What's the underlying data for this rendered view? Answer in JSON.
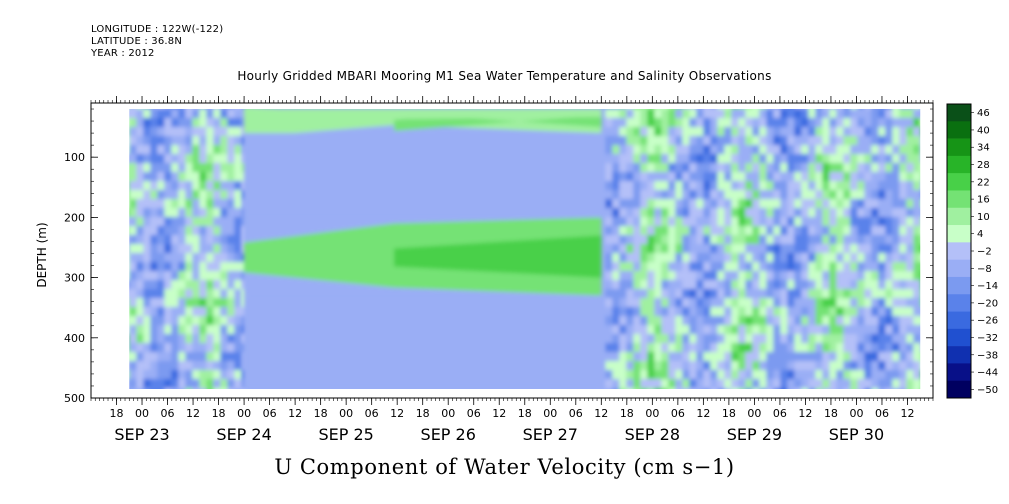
{
  "header": {
    "longitude": "LONGITUDE : 122W(-122)",
    "latitude": "LATITUDE : 36.8N",
    "year": "YEAR : 2012"
  },
  "chart_data": {
    "type": "heatmap",
    "title": "Hourly Gridded MBARI Mooring M1 Sea Water Temperature and Salinity Observations",
    "xlabel": "U Component of Water Velocity (cm s−1)",
    "ylabel": "DEPTH (m)",
    "ylim": [
      500,
      10
    ],
    "y_ticks": [
      100,
      200,
      300,
      400,
      500
    ],
    "x_unit": "hours",
    "x_range": [
      "2012-09-22 12:00",
      "2012-09-30 18:00"
    ],
    "x_hour_ticks": [
      {
        "time": "2012-09-22 18:00",
        "label": "18"
      },
      {
        "time": "2012-09-23 00:00",
        "label": "00"
      },
      {
        "time": "2012-09-23 06:00",
        "label": "06"
      },
      {
        "time": "2012-09-23 12:00",
        "label": "12"
      },
      {
        "time": "2012-09-23 18:00",
        "label": "18"
      },
      {
        "time": "2012-09-24 00:00",
        "label": "00"
      },
      {
        "time": "2012-09-24 06:00",
        "label": "06"
      },
      {
        "time": "2012-09-24 12:00",
        "label": "12"
      },
      {
        "time": "2012-09-24 18:00",
        "label": "18"
      },
      {
        "time": "2012-09-25 00:00",
        "label": "00"
      },
      {
        "time": "2012-09-25 06:00",
        "label": "06"
      },
      {
        "time": "2012-09-25 12:00",
        "label": "12"
      },
      {
        "time": "2012-09-25 18:00",
        "label": "18"
      },
      {
        "time": "2012-09-26 00:00",
        "label": "00"
      },
      {
        "time": "2012-09-26 06:00",
        "label": "06"
      },
      {
        "time": "2012-09-26 12:00",
        "label": "12"
      },
      {
        "time": "2012-09-26 18:00",
        "label": "18"
      },
      {
        "time": "2012-09-27 00:00",
        "label": "00"
      },
      {
        "time": "2012-09-27 06:00",
        "label": "06"
      },
      {
        "time": "2012-09-27 12:00",
        "label": "12"
      },
      {
        "time": "2012-09-27 18:00",
        "label": "18"
      },
      {
        "time": "2012-09-28 00:00",
        "label": "00"
      },
      {
        "time": "2012-09-28 06:00",
        "label": "06"
      },
      {
        "time": "2012-09-28 12:00",
        "label": "12"
      },
      {
        "time": "2012-09-28 18:00",
        "label": "18"
      },
      {
        "time": "2012-09-29 00:00",
        "label": "00"
      },
      {
        "time": "2012-09-29 06:00",
        "label": "06"
      },
      {
        "time": "2012-09-29 12:00",
        "label": "12"
      },
      {
        "time": "2012-09-29 18:00",
        "label": "18"
      },
      {
        "time": "2012-09-30 00:00",
        "label": "00"
      },
      {
        "time": "2012-09-30 06:00",
        "label": "06"
      },
      {
        "time": "2012-09-30 12:00",
        "label": "12"
      }
    ],
    "x_date_labels": [
      {
        "time": "2012-09-23 00:00",
        "label": "SEP 23"
      },
      {
        "time": "2012-09-24 00:00",
        "label": "SEP 24"
      },
      {
        "time": "2012-09-25 00:00",
        "label": "SEP 25"
      },
      {
        "time": "2012-09-26 00:00",
        "label": "SEP 26"
      },
      {
        "time": "2012-09-27 00:00",
        "label": "SEP 27"
      },
      {
        "time": "2012-09-28 00:00",
        "label": "SEP 28"
      },
      {
        "time": "2012-09-29 00:00",
        "label": "SEP 29"
      },
      {
        "time": "2012-09-30 00:00",
        "label": "SEP 30"
      }
    ],
    "data_time_range": [
      "2012-09-22 21:00",
      "2012-09-30 15:00"
    ],
    "data_depth_range": [
      20,
      485
    ],
    "colorbar": {
      "levels": [
        -50,
        -44,
        -38,
        -32,
        -26,
        -20,
        -14,
        -8,
        -2,
        4,
        10,
        16,
        22,
        28,
        34,
        40,
        46
      ],
      "labels": [
        "46",
        "40",
        "34",
        "28",
        "22",
        "16",
        "10",
        "4",
        "−2",
        "−8",
        "−14",
        "−20",
        "−26",
        "−32",
        "−38",
        "−44",
        "−50"
      ],
      "colors": [
        "#000060",
        "#081088",
        "#1030b0",
        "#2050d0",
        "#3a6ae0",
        "#5a82ea",
        "#7b9af0",
        "#9aaef5",
        "#b4c0f8",
        "#c8ffc8",
        "#a0f0a0",
        "#74e274",
        "#48d048",
        "#28b428",
        "#169416",
        "#0a7010",
        "#0a5018"
      ]
    },
    "features": [
      {
        "kind": "band",
        "start": "2012-09-24 00:00",
        "end": "2012-09-27 12:00",
        "depth": [
          20,
          60
        ],
        "value": 10
      },
      {
        "kind": "band",
        "start": "2012-09-24 00:00",
        "end": "2012-09-27 12:00",
        "depth": [
          60,
          200
        ],
        "value": -8
      },
      {
        "kind": "band",
        "start": "2012-09-24 00:00",
        "end": "2012-09-27 12:00",
        "depth": [
          200,
          330
        ],
        "value": 20
      },
      {
        "kind": "band",
        "start": "2012-09-24 00:00",
        "end": "2012-09-27 12:00",
        "depth": [
          330,
          485
        ],
        "value": -6
      }
    ]
  }
}
